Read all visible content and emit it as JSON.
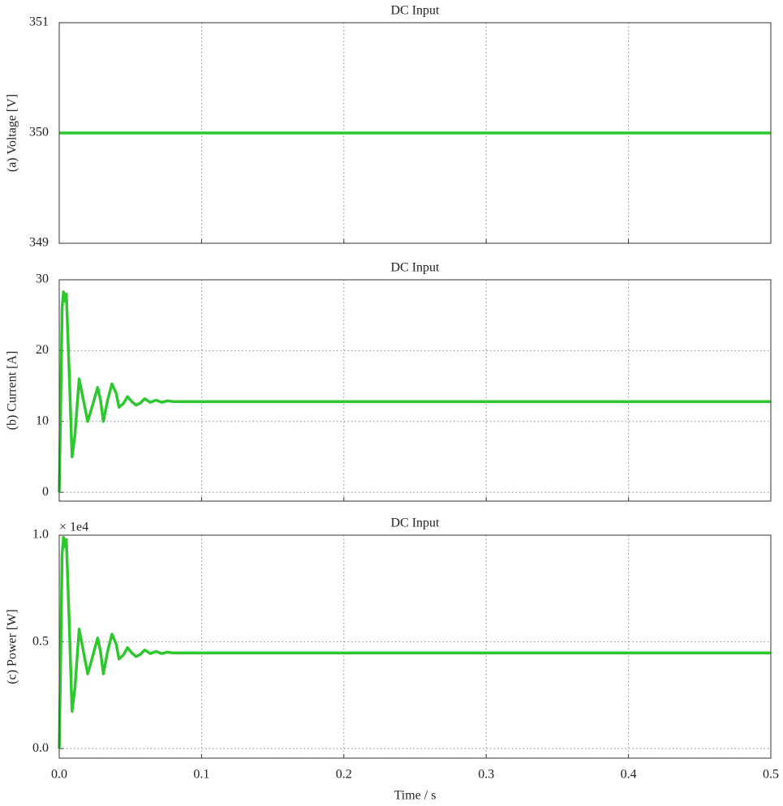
{
  "chart_data": [
    {
      "type": "line",
      "title": "DC Input",
      "y_label": "(a) Voltage [V]",
      "x": [
        0,
        0.5
      ],
      "values": [
        350,
        350
      ],
      "color": "#2ec82e",
      "xlim": [
        0,
        0.5
      ],
      "xticks": [
        0,
        0.1,
        0.2,
        0.3,
        0.4,
        0.5
      ],
      "ylim": [
        349,
        351
      ],
      "yticks": [
        349,
        350,
        351
      ],
      "grid": true
    },
    {
      "type": "line",
      "title": "DC Input",
      "y_label": "(b) Current [A]",
      "x": [
        0,
        0.001,
        0.002,
        0.003,
        0.004,
        0.005,
        0.007,
        0.009,
        0.011,
        0.014,
        0.017,
        0.02,
        0.023,
        0.027,
        0.029,
        0.031,
        0.034,
        0.037,
        0.04,
        0.042,
        0.045,
        0.048,
        0.051,
        0.054,
        0.057,
        0.06,
        0.064,
        0.068,
        0.072,
        0.076,
        0.08,
        0.09,
        0.1,
        0.2,
        0.3,
        0.4,
        0.5
      ],
      "values": [
        0,
        12,
        26,
        28.3,
        27,
        28,
        17,
        5,
        8,
        16,
        13,
        10,
        12,
        14.8,
        13,
        10,
        13,
        15.3,
        14,
        12,
        12.5,
        13.5,
        12.8,
        12.3,
        12.6,
        13.2,
        12.7,
        13,
        12.7,
        12.9,
        12.8,
        12.8,
        12.8,
        12.8,
        12.8,
        12.8,
        12.8
      ],
      "color": "#2ec82e",
      "xlim": [
        0,
        0.5
      ],
      "xticks": [
        0,
        0.1,
        0.2,
        0.3,
        0.4,
        0.5
      ],
      "ylim": [
        -1.25,
        30
      ],
      "yticks": [
        0,
        10,
        20,
        30
      ],
      "grid": true
    },
    {
      "type": "line",
      "title": "DC Input",
      "y_label": "(c) Power [W]",
      "scale_label": "× 1e4",
      "x_label": "Time / s",
      "x": [
        0,
        0.001,
        0.002,
        0.003,
        0.004,
        0.005,
        0.007,
        0.009,
        0.011,
        0.014,
        0.017,
        0.02,
        0.023,
        0.027,
        0.029,
        0.031,
        0.034,
        0.037,
        0.04,
        0.042,
        0.045,
        0.048,
        0.051,
        0.054,
        0.057,
        0.06,
        0.064,
        0.068,
        0.072,
        0.076,
        0.08,
        0.09,
        0.1,
        0.2,
        0.3,
        0.4,
        0.5
      ],
      "values": [
        0,
        0.42,
        0.91,
        0.99,
        0.945,
        0.98,
        0.595,
        0.175,
        0.28,
        0.56,
        0.455,
        0.35,
        0.42,
        0.518,
        0.455,
        0.35,
        0.455,
        0.536,
        0.49,
        0.42,
        0.438,
        0.473,
        0.448,
        0.431,
        0.441,
        0.462,
        0.445,
        0.455,
        0.445,
        0.452,
        0.448,
        0.448,
        0.448,
        0.448,
        0.448,
        0.448,
        0.448
      ],
      "color": "#2ec82e",
      "xlim": [
        0,
        0.5
      ],
      "xticks": [
        {
          "value": 0,
          "label": "0.0"
        },
        0.1,
        0.2,
        0.3,
        0.4,
        0.5
      ],
      "ylim": [
        -0.045,
        1.0
      ],
      "yticks": [
        {
          "value": 0,
          "label": "0.0"
        },
        0.5,
        {
          "value": 1,
          "label": "1.0"
        }
      ],
      "grid": true
    }
  ]
}
